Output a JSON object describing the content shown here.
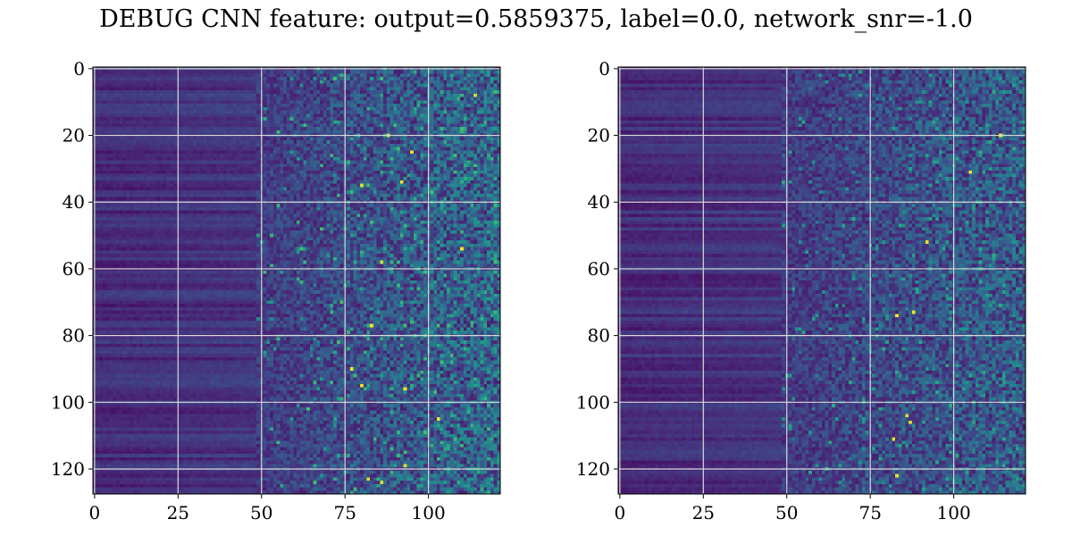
{
  "figure": {
    "title": "DEBUG CNN feature: output=0.5859375, label=0.0, network_snr=-1.0"
  },
  "colormap": {
    "name": "viridis",
    "stops": [
      "#440154",
      "#482878",
      "#3e4a89",
      "#31688e",
      "#26828e",
      "#1f9e89",
      "#35b779",
      "#6ece58",
      "#b5de2b",
      "#fde725"
    ]
  },
  "chart_data": [
    {
      "type": "heatmap",
      "title": "",
      "xlabel": "",
      "ylabel": "",
      "cols": 122,
      "rows": 128,
      "xlim": [
        -0.5,
        121.5
      ],
      "ylim": [
        127.5,
        -0.5
      ],
      "y_inverted": true,
      "x_ticks": [
        0,
        25,
        50,
        75,
        100
      ],
      "y_ticks": [
        0,
        20,
        40,
        60,
        80,
        100,
        120
      ],
      "grid": true,
      "seed": 12345,
      "intensity": 1.0,
      "peaks": [
        [
          114,
          8
        ],
        [
          88,
          20
        ],
        [
          95,
          25
        ],
        [
          92,
          34
        ],
        [
          80,
          35
        ],
        [
          110,
          54
        ],
        [
          86,
          58
        ],
        [
          83,
          77
        ],
        [
          77,
          90
        ],
        [
          80,
          95
        ],
        [
          93,
          96
        ],
        [
          103,
          105
        ],
        [
          93,
          119
        ],
        [
          86,
          124
        ],
        [
          82,
          123
        ]
      ]
    },
    {
      "type": "heatmap",
      "title": "",
      "xlabel": "",
      "ylabel": "",
      "cols": 122,
      "rows": 128,
      "xlim": [
        -0.5,
        121.5
      ],
      "ylim": [
        127.5,
        -0.5
      ],
      "y_inverted": true,
      "x_ticks": [
        0,
        25,
        50,
        75,
        100
      ],
      "y_ticks": [
        0,
        20,
        40,
        60,
        80,
        100,
        120
      ],
      "grid": true,
      "seed": 67890,
      "intensity": 0.75,
      "peaks": [
        [
          92,
          52
        ],
        [
          83,
          74
        ],
        [
          88,
          73
        ],
        [
          86,
          104
        ],
        [
          82,
          111
        ],
        [
          87,
          106
        ],
        [
          83,
          122
        ],
        [
          114,
          20
        ],
        [
          105,
          31
        ]
      ]
    }
  ]
}
